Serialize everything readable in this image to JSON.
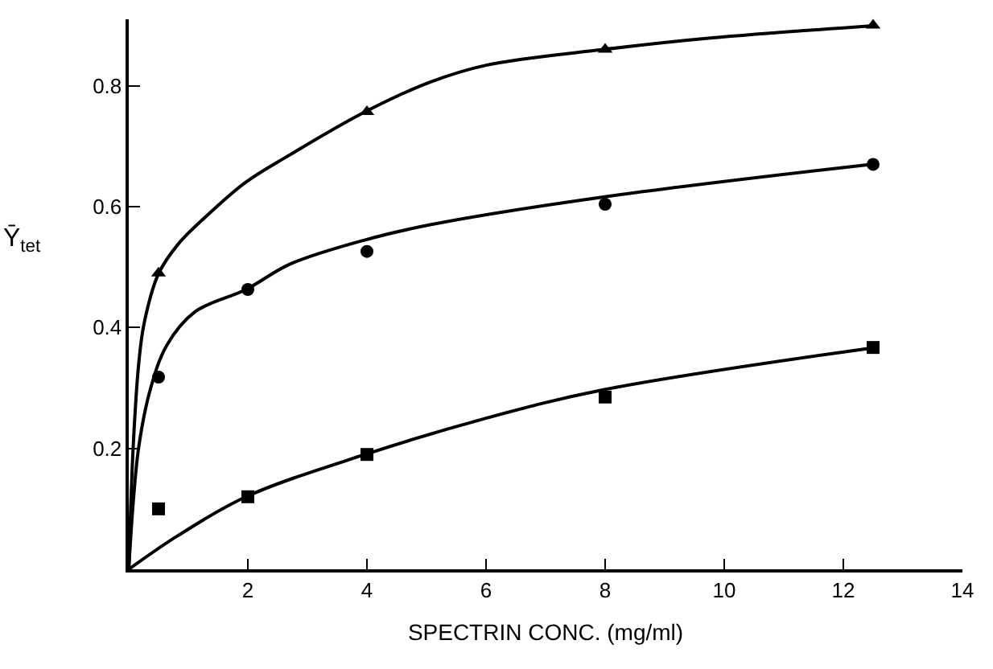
{
  "chart_data": {
    "type": "scatter",
    "xlabel": "SPECTRIN CONC. (mg/ml)",
    "ylabel": "Ȳ$_{tet}$",
    "xlim": [
      0,
      14
    ],
    "xticks": [
      2,
      4,
      6,
      8,
      10,
      12,
      14
    ],
    "ylim": [
      0,
      0.91
    ],
    "yticks": [
      0.2,
      0.4,
      0.6,
      0.8
    ],
    "series": [
      {
        "marker": "triangle",
        "color": "#000000",
        "x": [
          0.5,
          4,
          8,
          12.5
        ],
        "values": [
          0.49,
          0.757,
          0.86,
          0.9
        ]
      },
      {
        "marker": "circle",
        "color": "#000000",
        "x": [
          0.5,
          2,
          4,
          8,
          12.5
        ],
        "values": [
          0.318,
          0.463,
          0.526,
          0.604,
          0.67
        ]
      },
      {
        "marker": "square",
        "color": "#000000",
        "x": [
          0.5,
          2,
          4,
          8,
          12.5
        ],
        "values": [
          0.1,
          0.12,
          0.19,
          0.285,
          0.367
        ]
      },
      {
        "type": "line",
        "marker": "none",
        "line_style": "solid",
        "color": "#000000",
        "x": [
          0,
          0.075,
          0.17,
          0.26,
          0.5,
          0.83,
          1.3,
          1.96,
          2.71,
          3.97,
          5.06,
          6.0,
          7.97,
          9.77,
          12.46
        ],
        "values": [
          0,
          0.204,
          0.343,
          0.408,
          0.489,
          0.538,
          0.584,
          0.64,
          0.686,
          0.757,
          0.806,
          0.834,
          0.86,
          0.879,
          0.899
        ]
      },
      {
        "type": "line",
        "marker": "none",
        "line_style": "solid",
        "color": "#000000",
        "x": [
          0,
          0.075,
          0.17,
          0.36,
          0.64,
          1.11,
          1.97,
          2.71,
          3.97,
          5.06,
          7.97,
          12.46
        ],
        "values": [
          0,
          0.111,
          0.204,
          0.297,
          0.371,
          0.426,
          0.463,
          0.505,
          0.545,
          0.57,
          0.616,
          0.67
        ]
      },
      {
        "type": "line",
        "marker": "none",
        "line_style": "solid",
        "color": "#000000",
        "x": [
          0,
          0.83,
          1.97,
          3.97,
          6.0,
          7.97,
          12.46
        ],
        "values": [
          0,
          0.056,
          0.12,
          0.19,
          0.25,
          0.297,
          0.366
        ]
      }
    ]
  }
}
